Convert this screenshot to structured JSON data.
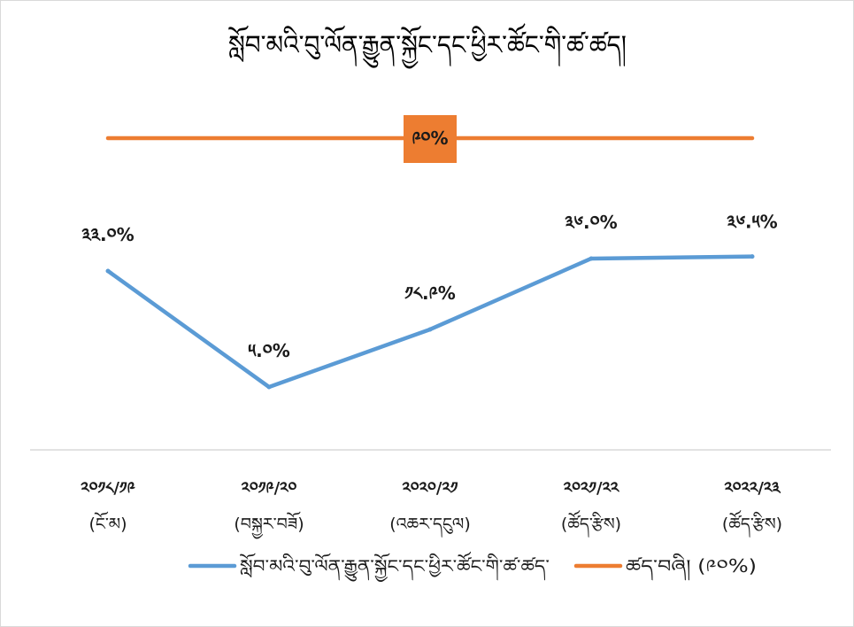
{
  "chart_data": {
    "type": "line",
    "title": "སློབ་མའི་བུ་ལོན་རྒྱུན་སྐྱོང་དང་ཕྱིར་ཚོང་གི་ཚ་ཚད།",
    "categories": [
      {
        "label": "༢༠༡༨/༡༩",
        "sub": "(ངོ་མ)"
      },
      {
        "label": "༢༠༡༩/༢༠",
        "sub": "(བསྐྱར་བཟོ)"
      },
      {
        "label": "༢༠༢༠/༢༡",
        "sub": "(འཆར་དངུལ)"
      },
      {
        "label": "༢༠༢༡/༢༢",
        "sub": "(ཚོད་རྩིས)"
      },
      {
        "label": "༢༠༢༢/༢༣",
        "sub": "(ཚོད་རྩིས)"
      }
    ],
    "series": [
      {
        "name": "སློབ་མའི་བུ་ལོན་རྒྱུན་སྐྱོང་དང་ཕྱིར་ཚོང་གི་ཚ་ཚད་",
        "values": [
          33.0,
          5.0,
          18.9,
          36.0,
          36.5
        ],
        "labels": [
          "༣༣.༠%",
          "༥.༠%",
          "༡༨.༩%",
          "༣༦.༠%",
          "༣༦.༥%"
        ],
        "color": "#5b9bd5"
      },
      {
        "name": "ཚད་བཞི། (༩༠%)",
        "values": [
          90,
          90,
          90,
          90,
          90
        ],
        "label": "༩༠%",
        "color": "#ed7d31"
      }
    ],
    "legend_position": "bottom",
    "grid": false
  }
}
